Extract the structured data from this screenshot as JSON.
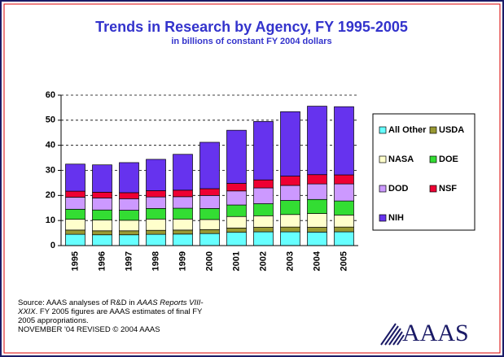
{
  "chart_data": {
    "type": "stacked_bar",
    "title": "Trends in Research by Agency, FY 1995-2005",
    "subtitle": "in billions of constant FY 2004 dollars",
    "categories": [
      "1995",
      "1996",
      "1997",
      "1998",
      "1999",
      "2000",
      "2001",
      "2002",
      "2003",
      "2004",
      "2005"
    ],
    "series": [
      {
        "name": "All Other",
        "color": "#66ffff",
        "values": [
          4.5,
          4.3,
          4.3,
          4.5,
          4.6,
          4.8,
          5.3,
          5.5,
          5.5,
          5.4,
          5.5
        ]
      },
      {
        "name": "USDA",
        "color": "#999933",
        "values": [
          1.7,
          1.6,
          1.6,
          1.6,
          1.6,
          1.6,
          1.7,
          1.8,
          1.9,
          1.9,
          1.9
        ]
      },
      {
        "name": "NASA",
        "color": "#ffffcc",
        "values": [
          4.3,
          4.3,
          4.2,
          4.5,
          4.4,
          4.0,
          4.6,
          4.6,
          5.0,
          5.5,
          4.8
        ]
      },
      {
        "name": "DOE",
        "color": "#33dd33",
        "values": [
          4.0,
          4.0,
          4.0,
          4.2,
          4.3,
          4.4,
          4.6,
          4.8,
          5.6,
          5.6,
          5.6
        ]
      },
      {
        "name": "DOD",
        "color": "#cc99ff",
        "values": [
          4.8,
          4.8,
          4.6,
          4.6,
          4.6,
          5.2,
          5.6,
          6.3,
          6.0,
          6.2,
          6.8
        ]
      },
      {
        "name": "NSF",
        "color": "#ee0033",
        "values": [
          2.4,
          2.3,
          2.4,
          2.5,
          2.6,
          2.7,
          3.0,
          3.2,
          3.7,
          3.7,
          3.6
        ]
      },
      {
        "name": "NIH",
        "color": "#6633ee",
        "values": [
          10.8,
          10.9,
          12.0,
          12.5,
          14.3,
          18.5,
          21.2,
          23.3,
          25.7,
          27.3,
          27.2
        ]
      }
    ],
    "ylim": [
      0,
      60
    ],
    "yticks": [
      0,
      10,
      20,
      30,
      40,
      50,
      60
    ],
    "grid": true,
    "legend": "right"
  },
  "footer": {
    "source": [
      "Source: AAAS analyses of R&D in ",
      "AAAS Reports VIII-XXIX",
      ".  FY 2005 figures are AAAS estimates of final FY 2005 appropriations."
    ],
    "revised": "NOVEMBER '04 REVISED © 2004 AAAS",
    "logo": "AAAS"
  }
}
